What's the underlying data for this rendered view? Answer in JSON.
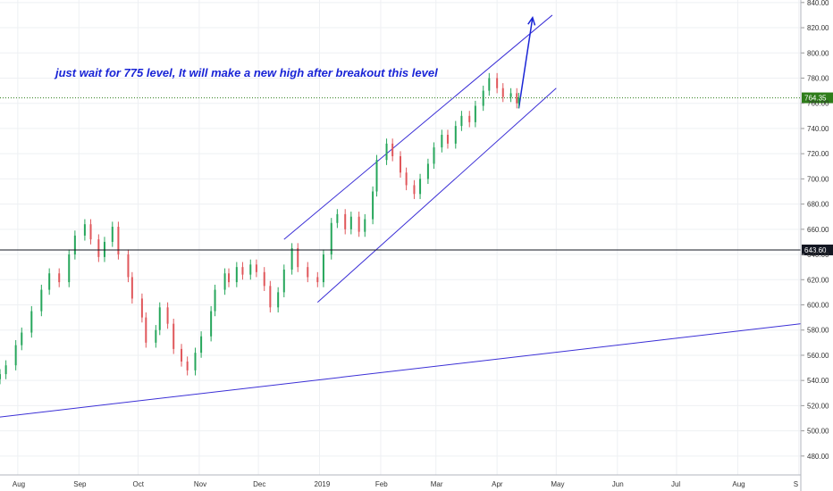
{
  "chart_data": {
    "type": "candlestick",
    "annotation": "just wait  for 775 level, It will make a new high after breakout this level",
    "y_axis": {
      "side": "right",
      "range": [
        465,
        842
      ],
      "ticks": [
        "840.00",
        "820.00",
        "800.00",
        "780.00",
        "760.00",
        "740.00",
        "720.00",
        "700.00",
        "680.00",
        "660.00",
        "640.00",
        "620.00",
        "600.00",
        "580.00",
        "560.00",
        "540.00",
        "520.00",
        "500.00",
        "480.00"
      ]
    },
    "x_axis": {
      "labels": [
        "Aug",
        "Sep",
        "Oct",
        "Nov",
        "Dec",
        "2019",
        "Feb",
        "Mar",
        "Apr",
        "May",
        "Jun",
        "Jul",
        "Aug",
        "S"
      ],
      "range": [
        "2018-07-23",
        "2019-09-02"
      ]
    },
    "grid": true,
    "price_labels": [
      {
        "value": 764.35,
        "text": "764.35",
        "color": "#2e7d1a",
        "line": "dotted"
      },
      {
        "value": 643.6,
        "text": "643.60",
        "color": "#131722",
        "line": "solid"
      }
    ],
    "colors": {
      "up": "#26a65b",
      "down": "#e0575b",
      "trendline": "#3b2fd6",
      "arrow": "#1a25d6",
      "grid": "#eef0f3"
    },
    "trendlines": [
      {
        "name": "long-term-support",
        "from": [
          "2018-07-23",
          511
        ],
        "to": [
          "2019-09-02",
          585
        ]
      },
      {
        "name": "channel-upper",
        "from": [
          "2018-12-14",
          652
        ],
        "to": [
          "2019-04-29",
          830
        ]
      },
      {
        "name": "channel-lower",
        "from": [
          "2018-12-31",
          602
        ],
        "to": [
          "2019-05-01",
          772
        ]
      }
    ],
    "arrow": {
      "from": [
        "2019-04-12",
        756
      ],
      "to": [
        "2019-04-19",
        828
      ]
    },
    "series": [
      {
        "x": "2018-07-23",
        "close": 545
      },
      {
        "x": "2018-07-26",
        "close": 552
      },
      {
        "x": "2018-07-31",
        "close": 568
      },
      {
        "x": "2018-08-03",
        "close": 578
      },
      {
        "x": "2018-08-08",
        "close": 595
      },
      {
        "x": "2018-08-13",
        "close": 612
      },
      {
        "x": "2018-08-17",
        "close": 625
      },
      {
        "x": "2018-08-22",
        "close": 618
      },
      {
        "x": "2018-08-27",
        "close": 640
      },
      {
        "x": "2018-08-30",
        "close": 655
      },
      {
        "x": "2018-09-04",
        "close": 664
      },
      {
        "x": "2018-09-07",
        "close": 652
      },
      {
        "x": "2018-09-11",
        "close": 638
      },
      {
        "x": "2018-09-14",
        "close": 650
      },
      {
        "x": "2018-09-18",
        "close": 662
      },
      {
        "x": "2018-09-21",
        "close": 640
      },
      {
        "x": "2018-09-26",
        "close": 622
      },
      {
        "x": "2018-09-28",
        "close": 605
      },
      {
        "x": "2018-10-03",
        "close": 590
      },
      {
        "x": "2018-10-05",
        "close": 570
      },
      {
        "x": "2018-10-10",
        "close": 580
      },
      {
        "x": "2018-10-12",
        "close": 598
      },
      {
        "x": "2018-10-16",
        "close": 585
      },
      {
        "x": "2018-10-19",
        "close": 565
      },
      {
        "x": "2018-10-23",
        "close": 555
      },
      {
        "x": "2018-10-26",
        "close": 548
      },
      {
        "x": "2018-10-30",
        "close": 562
      },
      {
        "x": "2018-11-02",
        "close": 575
      },
      {
        "x": "2018-11-07",
        "close": 595
      },
      {
        "x": "2018-11-09",
        "close": 612
      },
      {
        "x": "2018-11-14",
        "close": 625
      },
      {
        "x": "2018-11-16",
        "close": 618
      },
      {
        "x": "2018-11-20",
        "close": 630
      },
      {
        "x": "2018-11-23",
        "close": 624
      },
      {
        "x": "2018-11-27",
        "close": 632
      },
      {
        "x": "2018-11-30",
        "close": 626
      },
      {
        "x": "2018-12-04",
        "close": 615
      },
      {
        "x": "2018-12-07",
        "close": 598
      },
      {
        "x": "2018-12-11",
        "close": 610
      },
      {
        "x": "2018-12-14",
        "close": 628
      },
      {
        "x": "2018-12-18",
        "close": 645
      },
      {
        "x": "2018-12-21",
        "close": 630
      },
      {
        "x": "2018-12-26",
        "close": 622
      },
      {
        "x": "2018-12-31",
        "close": 618
      },
      {
        "x": "2019-01-03",
        "close": 640
      },
      {
        "x": "2019-01-07",
        "close": 665
      },
      {
        "x": "2019-01-10",
        "close": 672
      },
      {
        "x": "2019-01-14",
        "close": 660
      },
      {
        "x": "2019-01-17",
        "close": 670
      },
      {
        "x": "2019-01-21",
        "close": 658
      },
      {
        "x": "2019-01-24",
        "close": 668
      },
      {
        "x": "2019-01-28",
        "close": 690
      },
      {
        "x": "2019-01-30",
        "close": 715
      },
      {
        "x": "2019-02-04",
        "close": 728
      },
      {
        "x": "2019-02-07",
        "close": 718
      },
      {
        "x": "2019-02-11",
        "close": 705
      },
      {
        "x": "2019-02-14",
        "close": 695
      },
      {
        "x": "2019-02-18",
        "close": 688
      },
      {
        "x": "2019-02-21",
        "close": 700
      },
      {
        "x": "2019-02-25",
        "close": 712
      },
      {
        "x": "2019-02-28",
        "close": 725
      },
      {
        "x": "2019-03-04",
        "close": 735
      },
      {
        "x": "2019-03-07",
        "close": 728
      },
      {
        "x": "2019-03-11",
        "close": 742
      },
      {
        "x": "2019-03-14",
        "close": 750
      },
      {
        "x": "2019-03-18",
        "close": 745
      },
      {
        "x": "2019-03-21",
        "close": 758
      },
      {
        "x": "2019-03-25",
        "close": 770
      },
      {
        "x": "2019-03-28",
        "close": 780
      },
      {
        "x": "2019-04-01",
        "close": 772
      },
      {
        "x": "2019-04-04",
        "close": 765
      },
      {
        "x": "2019-04-08",
        "close": 768
      },
      {
        "x": "2019-04-11",
        "close": 760
      },
      {
        "x": "2019-04-12",
        "close": 764.35
      }
    ]
  }
}
